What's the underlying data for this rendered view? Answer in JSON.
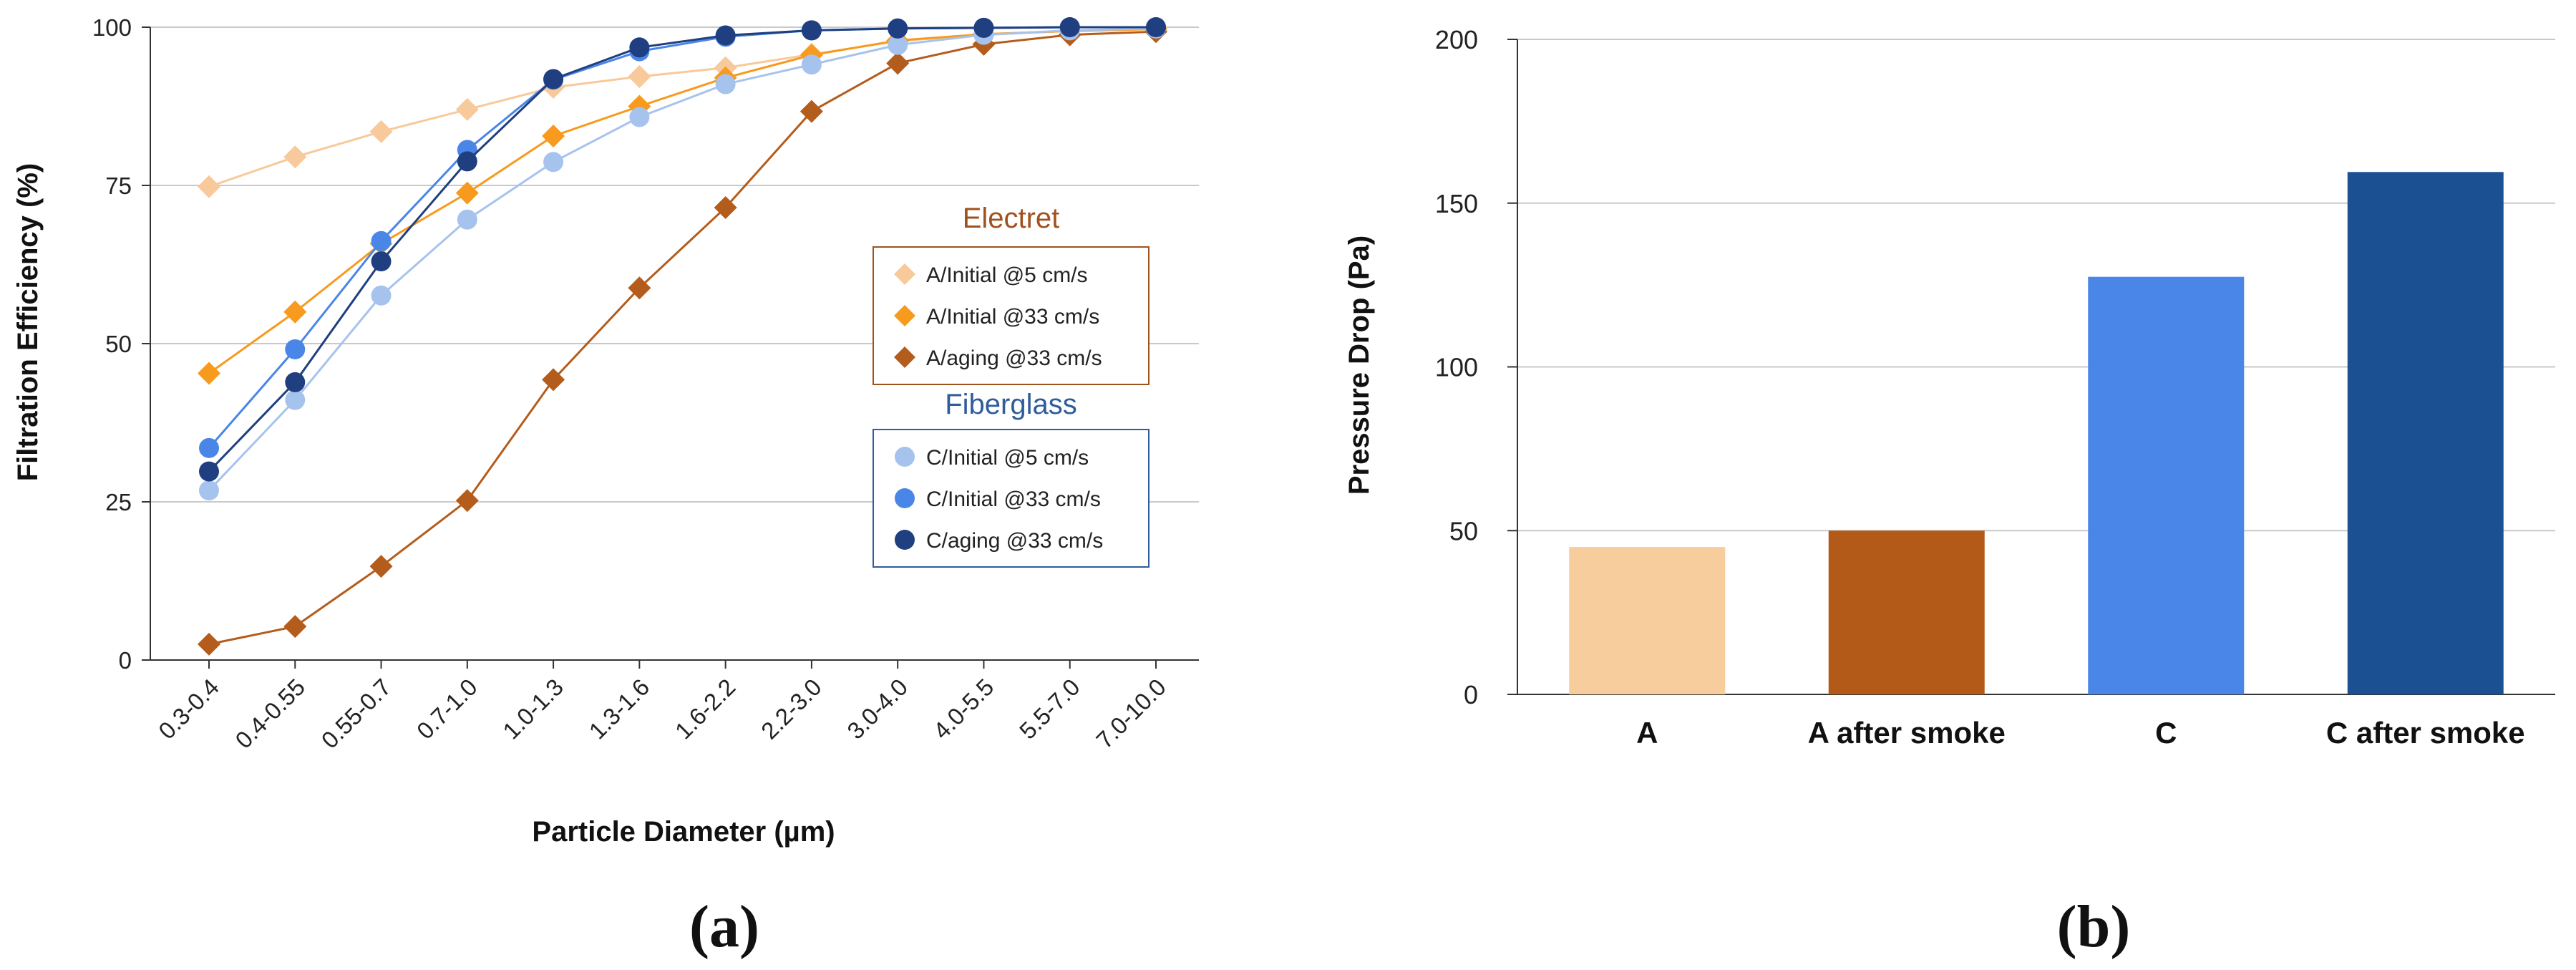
{
  "panel_labels": {
    "a": "(a)",
    "b": "(b)"
  },
  "chart_data": [
    {
      "type": "line",
      "id": "a",
      "title": "",
      "xlabel": "Particle Diameter (µm)",
      "ylabel": "Filtration Efficiency (%)",
      "ylim": [
        0,
        100
      ],
      "yticks": [
        0,
        25,
        50,
        75,
        100
      ],
      "grid": true,
      "categories": [
        "0.3-0.4",
        "0.4-0.55",
        "0.55-0.7",
        "0.7-1.0",
        "1.0-1.3",
        "1.3-1.6",
        "1.6-2.2",
        "2.2-3.0",
        "3.0-4.0",
        "4.0-5.5",
        "5.5-7.0",
        "7.0-10.0"
      ],
      "legend_groups": [
        {
          "title": "Electret",
          "color": "#A0521E",
          "series": [
            0,
            1,
            2
          ]
        },
        {
          "title": "Fiberglass",
          "color": "#2F5C9A",
          "series": [
            3,
            4,
            5
          ]
        }
      ],
      "series": [
        {
          "name": "A/Initial @5 cm/s",
          "marker": "diamond",
          "color": "#F8C99A",
          "values": [
            74.8,
            79.5,
            83.5,
            87,
            90.5,
            92.2,
            93.6,
            95.7,
            97.8,
            98.8,
            99.4,
            99.7
          ]
        },
        {
          "name": "A/Initial @33 cm/s",
          "marker": "diamond",
          "color": "#F79A1E",
          "values": [
            45.3,
            55,
            65.8,
            73.8,
            82.8,
            87.5,
            92,
            95.6,
            97.9,
            98.9,
            99.4,
            99.7
          ]
        },
        {
          "name": "A/aging @33 cm/s",
          "marker": "diamond",
          "color": "#B45C1B",
          "values": [
            2.5,
            5.3,
            14.8,
            25.2,
            44.3,
            58.8,
            71.5,
            86.7,
            94.3,
            97.3,
            98.8,
            99.3
          ]
        },
        {
          "name": "C/Initial @5 cm/s",
          "marker": "circle",
          "color": "#A6C3EE",
          "values": [
            26.8,
            41.1,
            57.6,
            69.6,
            78.7,
            85.8,
            91,
            94.1,
            97.2,
            98.8,
            99.5,
            99.8
          ]
        },
        {
          "name": "C/Initial @33 cm/s",
          "marker": "circle",
          "color": "#4A86E8",
          "values": [
            33.5,
            49.1,
            66.2,
            80.6,
            91.7,
            96.2,
            98.5,
            99.5,
            99.8,
            99.9,
            100,
            100
          ]
        },
        {
          "name": "C/aging @33 cm/s",
          "marker": "circle",
          "color": "#1F3F80",
          "values": [
            29.8,
            43.9,
            63,
            78.8,
            91.8,
            96.8,
            98.7,
            99.5,
            99.8,
            99.9,
            100,
            100
          ]
        }
      ]
    },
    {
      "type": "bar",
      "id": "b",
      "title": "",
      "xlabel": "",
      "ylabel": "Pressure Drop (Pa)",
      "ylim": [
        0,
        200
      ],
      "yticks": [
        0,
        50,
        100,
        150,
        200
      ],
      "grid": true,
      "categories": [
        "A",
        "A after smoke",
        "C",
        "C after smoke"
      ],
      "values": [
        45,
        50,
        127.5,
        159.5
      ],
      "colors": [
        "#F8CD9E",
        "#B45A18",
        "#4A86E8",
        "#1B5193"
      ]
    }
  ]
}
